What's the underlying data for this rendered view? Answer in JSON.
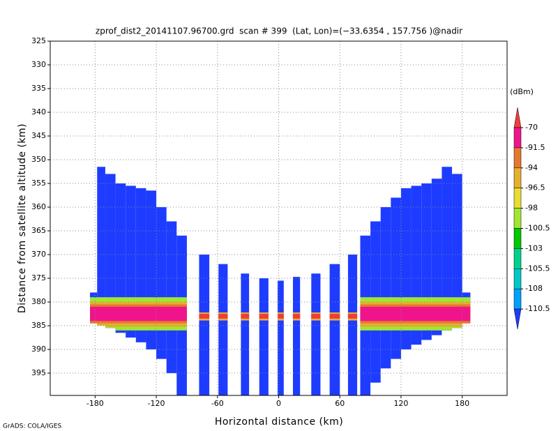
{
  "chart_data": {
    "type": "heatmap",
    "title": "zprof_dist2_20141107.96700.grd  scan # 399  (Lat, Lon)=(−33.6354 , 157.756 )@nadir",
    "x_label": "Horizontal distance (km)",
    "y_label": "Distance from satellite altitude (km)",
    "footer": "GrADS: COLA/IGES",
    "xlim": [
      -224,
      224
    ],
    "ylim": [
      325,
      399.7
    ],
    "y_reversed": true,
    "xticks": [
      -180,
      -120,
      -60,
      0,
      60,
      120,
      180
    ],
    "yticks": [
      325,
      330,
      335,
      340,
      345,
      350,
      355,
      360,
      365,
      370,
      375,
      380,
      385,
      390,
      395
    ],
    "grid": true,
    "colorbar": {
      "unit": "(dBm)",
      "levels": [
        -70,
        -91.5,
        -94,
        -96.5,
        -98,
        -100.5,
        -103,
        -105.5,
        -108,
        -110.5
      ],
      "colors": [
        "#f03c3c",
        "#f0148c",
        "#e6782d",
        "#e6af2d",
        "#e6dc32",
        "#a0e632",
        "#00c800",
        "#00d28c",
        "#00c8c8",
        "#00a0ff",
        "#1e3cff"
      ]
    },
    "base_value": -112,
    "columns": [
      {
        "x0": -185,
        "x1": -178,
        "top": 378,
        "bottom": 384.5
      },
      {
        "x0": -178,
        "x1": -170,
        "top": 351.5,
        "bottom": 385
      },
      {
        "x0": -170,
        "x1": -160,
        "top": 353,
        "bottom": 385.5
      },
      {
        "x0": -160,
        "x1": -150,
        "top": 355,
        "bottom": 386.5
      },
      {
        "x0": -150,
        "x1": -140,
        "top": 355.5,
        "bottom": 387.5
      },
      {
        "x0": -140,
        "x1": -130,
        "top": 356,
        "bottom": 388.5
      },
      {
        "x0": -130,
        "x1": -120,
        "top": 356.5,
        "bottom": 390
      },
      {
        "x0": -120,
        "x1": -110,
        "top": 360,
        "bottom": 392
      },
      {
        "x0": -110,
        "x1": -100,
        "top": 363,
        "bottom": 395
      },
      {
        "x0": -100,
        "x1": -90,
        "top": 366,
        "bottom": 399.7
      },
      {
        "x0": -78,
        "x1": -68,
        "top": 370,
        "bottom": 399.7
      },
      {
        "x0": -59,
        "x1": -50,
        "top": 372,
        "bottom": 399.7
      },
      {
        "x0": -37,
        "x1": -29,
        "top": 374,
        "bottom": 399.7
      },
      {
        "x0": -19,
        "x1": -10,
        "top": 375,
        "bottom": 399.7
      },
      {
        "x0": -1,
        "x1": 5,
        "top": 375.5,
        "bottom": 399.7
      },
      {
        "x0": 14,
        "x1": 21,
        "top": 374.7,
        "bottom": 399.7
      },
      {
        "x0": 32,
        "x1": 41,
        "top": 374,
        "bottom": 399.7
      },
      {
        "x0": 50,
        "x1": 60,
        "top": 372,
        "bottom": 399.7
      },
      {
        "x0": 68,
        "x1": 77,
        "top": 370,
        "bottom": 399.7
      },
      {
        "x0": 80,
        "x1": 90,
        "top": 366,
        "bottom": 399.7
      },
      {
        "x0": 90,
        "x1": 100,
        "top": 363,
        "bottom": 397
      },
      {
        "x0": 100,
        "x1": 110,
        "top": 360,
        "bottom": 394
      },
      {
        "x0": 110,
        "x1": 120,
        "top": 358,
        "bottom": 392
      },
      {
        "x0": 120,
        "x1": 130,
        "top": 356,
        "bottom": 390
      },
      {
        "x0": 130,
        "x1": 140,
        "top": 355.5,
        "bottom": 389
      },
      {
        "x0": 140,
        "x1": 150,
        "top": 355,
        "bottom": 388
      },
      {
        "x0": 150,
        "x1": 160,
        "top": 354,
        "bottom": 387
      },
      {
        "x0": 160,
        "x1": 170,
        "top": 351.5,
        "bottom": 386
      },
      {
        "x0": 170,
        "x1": 180,
        "top": 353,
        "bottom": 385.5
      },
      {
        "x0": 180,
        "x1": 188,
        "top": 378,
        "bottom": 384.5
      }
    ],
    "layers": [
      {
        "x0": -185,
        "x1": -88,
        "top": 379,
        "bottom": 386,
        "value": -100.5
      },
      {
        "x0": -185,
        "x1": -88,
        "top": 380,
        "bottom": 385.2,
        "value": -96.5
      },
      {
        "x0": -185,
        "x1": -88,
        "top": 380.5,
        "bottom": 384.5,
        "value": -94
      },
      {
        "x0": -185,
        "x1": -88,
        "top": 381,
        "bottom": 384,
        "value": -80
      },
      {
        "x0": 78,
        "x1": 188,
        "top": 379,
        "bottom": 386,
        "value": -100.5
      },
      {
        "x0": 78,
        "x1": 188,
        "top": 380,
        "bottom": 385.2,
        "value": -96.5
      },
      {
        "x0": 78,
        "x1": 188,
        "top": 380.5,
        "bottom": 384.5,
        "value": -94
      },
      {
        "x0": 78,
        "x1": 188,
        "top": 381,
        "bottom": 384,
        "value": -80
      },
      {
        "x0": -88,
        "x1": 78,
        "top": 382.2,
        "bottom": 383.9,
        "value": -96.5
      },
      {
        "x0": -88,
        "x1": 78,
        "top": 382.5,
        "bottom": 383.5,
        "value": -68
      }
    ]
  }
}
